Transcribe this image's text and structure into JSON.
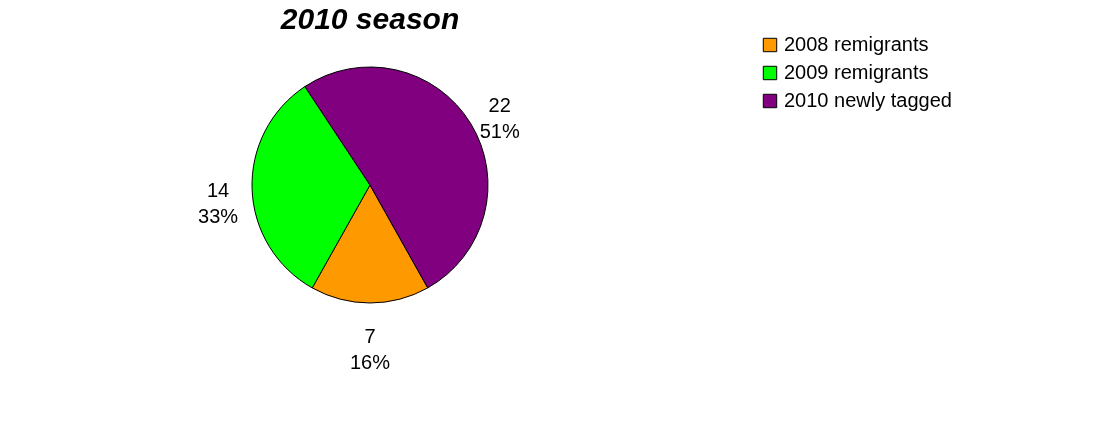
{
  "chart_data": {
    "type": "pie",
    "title": "2010 season",
    "categories": [
      "2008 remigrants",
      "2009 remigrants",
      "2010 newly tagged"
    ],
    "values": [
      7,
      14,
      22
    ],
    "colors": [
      "#ff9900",
      "#00ff00",
      "#800080"
    ],
    "value_labels": [
      "7\n16%",
      "14\n33%",
      "22\n51%"
    ],
    "legend": "right"
  }
}
